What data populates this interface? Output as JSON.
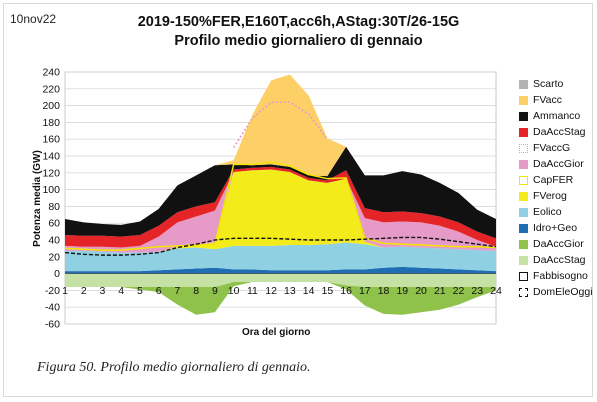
{
  "header": {
    "date": "10nov22",
    "title": "2019-150%FER,E160T,acc6h,AStag:30T/26-15G",
    "subtitle": "Profilo medio giornaliero di gennaio"
  },
  "caption": "Figura 50. Profilo medio giornaliero di gennaio.",
  "chart_data": {
    "type": "area",
    "title": "Profilo medio giornaliero di gennaio",
    "xlabel": "Ora del giorno",
    "ylabel": "Potenza media (GW)",
    "x": [
      1,
      2,
      3,
      4,
      5,
      6,
      7,
      8,
      9,
      10,
      11,
      12,
      13,
      14,
      15,
      16,
      17,
      18,
      19,
      20,
      21,
      22,
      23,
      24
    ],
    "xlim": [
      1,
      24
    ],
    "ylim": [
      -60,
      240
    ],
    "yticks": [
      -60,
      -40,
      -20,
      0,
      20,
      40,
      60,
      80,
      100,
      120,
      140,
      160,
      180,
      200,
      220,
      240
    ],
    "grid": true,
    "legend_position": "right",
    "series": [
      {
        "name": "Scarto",
        "kind": "positive-stack",
        "color": "#b3b3b3",
        "values": [
          0,
          0,
          0,
          0,
          0,
          0,
          0,
          0,
          0,
          0,
          0,
          0,
          0,
          0,
          0,
          0,
          0,
          0,
          0,
          0,
          0,
          0,
          0,
          0
        ]
      },
      {
        "name": "FVacc",
        "kind": "positive-stack",
        "color": "#fcd066",
        "values": [
          0,
          0,
          0,
          0,
          0,
          0,
          0,
          0,
          0,
          5,
          60,
          100,
          110,
          95,
          45,
          0,
          0,
          0,
          0,
          0,
          0,
          0,
          0,
          0
        ]
      },
      {
        "name": "Ammanco",
        "kind": "positive-stack",
        "color": "#111111",
        "values": [
          19,
          16,
          14,
          14,
          16,
          20,
          32,
          37,
          44,
          6,
          3,
          3,
          3,
          3,
          5,
          28,
          39,
          44,
          48,
          46,
          40,
          35,
          26,
          23
        ]
      },
      {
        "name": "DaAccStag",
        "kind": "positive-stack",
        "color": "#e52428",
        "values": [
          13,
          13,
          13,
          13,
          13,
          13,
          12,
          12,
          10,
          3,
          3,
          3,
          3,
          3,
          3,
          10,
          12,
          12,
          12,
          11,
          11,
          11,
          10,
          10
        ]
      },
      {
        "name": "FVaccG",
        "kind": "line",
        "color": "#e89ac6",
        "values": [
          null,
          null,
          null,
          null,
          null,
          null,
          null,
          null,
          null,
          150,
          185,
          204,
          204,
          190,
          160,
          null,
          null,
          null,
          null,
          null,
          null,
          null,
          null,
          null
        ]
      },
      {
        "name": "DaAccGior",
        "kind": "positive-stack",
        "color": "#e59ac8",
        "values": [
          6,
          5,
          6,
          6,
          8,
          18,
          29,
          34,
          38,
          0,
          0,
          0,
          0,
          0,
          0,
          0,
          28,
          30,
          30,
          30,
          27,
          21,
          12,
          5
        ]
      },
      {
        "name": "CapFER",
        "kind": "outline",
        "color": "#f3e600",
        "values": [
          30,
          29,
          28,
          28,
          30,
          32,
          33,
          34,
          35,
          130,
          130,
          133,
          128,
          118,
          113,
          114,
          42,
          36,
          35,
          34,
          33,
          32,
          32,
          31
        ]
      },
      {
        "name": "FVerog",
        "kind": "positive-stack",
        "color": "#f3ec1a",
        "values": [
          0,
          0,
          0,
          0,
          0,
          0,
          2,
          3,
          8,
          88,
          90,
          91,
          87,
          77,
          73,
          76,
          3,
          0,
          0,
          0,
          0,
          0,
          0,
          0
        ]
      },
      {
        "name": "Eolico",
        "kind": "positive-stack",
        "color": "#8fd0e3",
        "values": [
          24,
          24,
          23,
          22,
          22,
          22,
          25,
          25,
          22,
          28,
          28,
          29,
          30,
          30,
          31,
          32,
          30,
          24,
          24,
          24,
          24,
          24,
          24,
          24
        ]
      },
      {
        "name": "Idro+Geo",
        "kind": "positive-stack",
        "color": "#1f6eb4",
        "values": [
          3,
          3,
          3,
          3,
          3,
          4,
          5,
          6,
          7,
          5,
          5,
          4,
          4,
          4,
          4,
          5,
          5,
          7,
          8,
          7,
          6,
          5,
          4,
          3
        ]
      },
      {
        "name": "DaAccGior",
        "kind": "negative-stack",
        "color": "#8fc24b",
        "values": [
          0,
          0,
          0,
          0,
          -3,
          -6,
          -21,
          -33,
          -30,
          -5,
          0,
          0,
          0,
          0,
          0,
          -5,
          -22,
          -32,
          -33,
          -30,
          -27,
          -21,
          -12,
          -4
        ]
      },
      {
        "name": "DaAccStag",
        "kind": "negative-stack",
        "color": "#c6e1a4",
        "values": [
          -16,
          -16,
          -16,
          -16,
          -16,
          -16,
          -16,
          -16,
          -16,
          -10,
          -10,
          -10,
          -10,
          -10,
          -10,
          -14,
          -16,
          -16,
          -16,
          -16,
          -16,
          -16,
          -16,
          -16
        ]
      },
      {
        "name": "Fabbisogno",
        "kind": "line",
        "color": "#111111",
        "values": [
          null,
          null,
          null,
          null,
          null,
          null,
          null,
          null,
          null,
          null,
          null,
          null,
          null,
          null,
          null,
          null,
          null,
          null,
          null,
          null,
          null,
          null,
          null,
          null
        ]
      },
      {
        "name": "DomEleOggi",
        "kind": "dashed-line",
        "color": "#111111",
        "values": [
          25,
          23,
          22,
          22,
          23,
          25,
          31,
          35,
          40,
          42,
          42,
          42,
          41,
          40,
          40,
          40,
          41,
          42,
          43,
          43,
          41,
          38,
          35,
          32
        ]
      }
    ]
  }
}
